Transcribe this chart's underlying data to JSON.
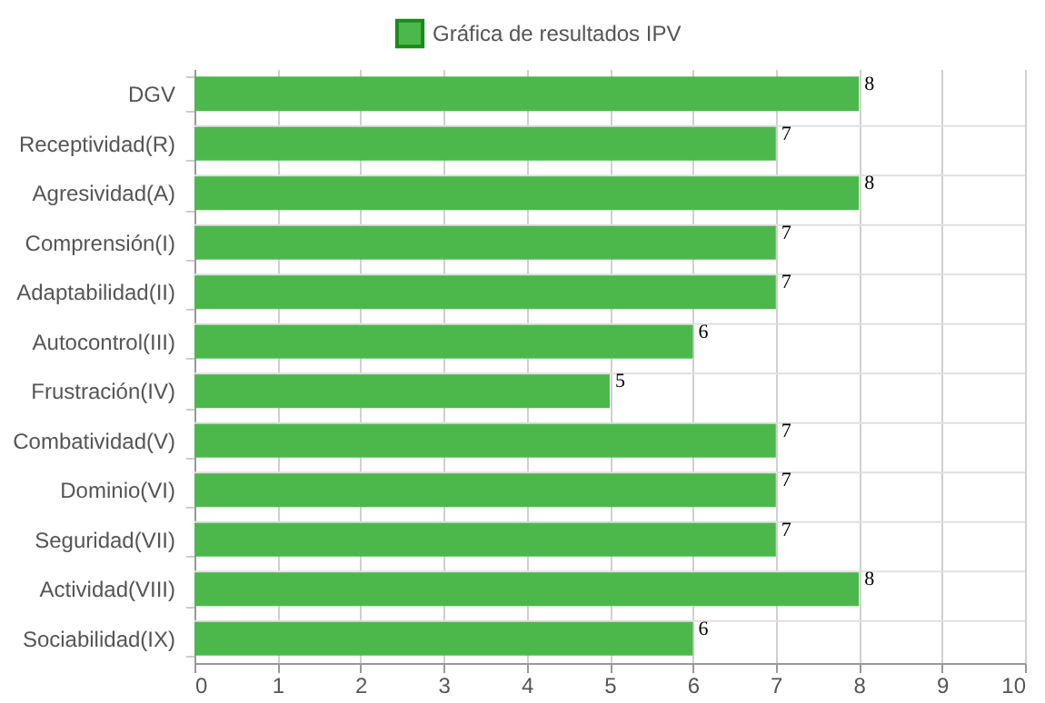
{
  "chart_data": {
    "type": "bar",
    "orientation": "horizontal",
    "categories": [
      "DGV",
      "Receptividad(R)",
      "Agresividad(A)",
      "Comprensión(I)",
      "Adaptabilidad(II)",
      "Autocontrol(III)",
      "Frustración(IV)",
      "Combatividad(V)",
      "Dominio(VI)",
      "Seguridad(VII)",
      "Actividad(VIII)",
      "Sociabilidad(IX)"
    ],
    "series": [
      {
        "name": "Gráfica de resultados IPV",
        "color": "#4cb84c",
        "values": [
          8,
          7,
          8,
          7,
          7,
          6,
          5,
          7,
          7,
          7,
          8,
          6
        ]
      }
    ],
    "xlim": [
      0,
      10
    ],
    "xticks": [
      0,
      1,
      2,
      3,
      4,
      5,
      6,
      7,
      8,
      9,
      10
    ],
    "grid": true,
    "legend": "top",
    "data_labels": true
  }
}
